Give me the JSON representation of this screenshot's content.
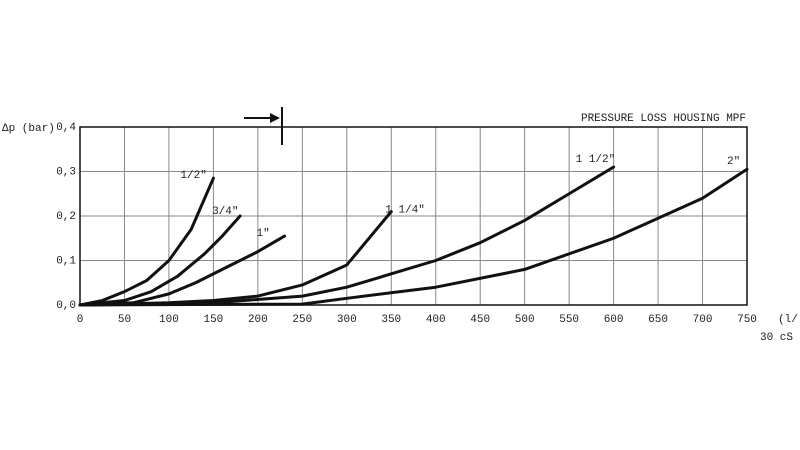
{
  "chart_data": {
    "type": "line",
    "title": "PRESSURE LOSS HOUSING MPF",
    "y_label": "Δp (bar)",
    "x_label": "(l/",
    "note": "30 cS",
    "color": "#111111",
    "grid": true,
    "xlim": [
      0,
      750
    ],
    "ylim": [
      0,
      0.4
    ],
    "xticks": [
      0,
      50,
      100,
      150,
      200,
      250,
      300,
      350,
      400,
      450,
      500,
      550,
      600,
      650,
      700,
      750
    ],
    "yticks": [
      {
        "value": 0,
        "label": "0,0"
      },
      {
        "value": 0.1,
        "label": "0,1"
      },
      {
        "value": 0.2,
        "label": "0,2"
      },
      {
        "value": 0.3,
        "label": "0,3"
      },
      {
        "value": 0.4,
        "label": "0,4"
      }
    ],
    "series": [
      {
        "name": "1/2\"",
        "color": "#111111",
        "x": [
          0,
          25,
          50,
          75,
          100,
          125,
          150
        ],
        "values": [
          0,
          0.01,
          0.03,
          0.055,
          0.1,
          0.17,
          0.285
        ]
      },
      {
        "name": "3/4\"",
        "color": "#111111",
        "x": [
          0,
          50,
          80,
          110,
          140,
          160,
          180
        ],
        "values": [
          0,
          0.01,
          0.03,
          0.065,
          0.115,
          0.155,
          0.2
        ]
      },
      {
        "name": "1\"",
        "color": "#111111",
        "x": [
          0,
          60,
          100,
          130,
          160,
          200,
          230
        ],
        "values": [
          0,
          0.005,
          0.025,
          0.05,
          0.08,
          0.12,
          0.155
        ]
      },
      {
        "name": "1 1/4\"",
        "color": "#111111",
        "x": [
          0,
          100,
          150,
          200,
          250,
          300,
          325,
          350
        ],
        "values": [
          0,
          0.005,
          0.01,
          0.02,
          0.045,
          0.09,
          0.15,
          0.21
        ]
      },
      {
        "name": "1 1/2\"",
        "color": "#111111",
        "x": [
          0,
          150,
          250,
          300,
          350,
          400,
          450,
          500,
          550,
          600
        ],
        "values": [
          0,
          0.005,
          0.02,
          0.04,
          0.07,
          0.1,
          0.14,
          0.19,
          0.25,
          0.31
        ]
      },
      {
        "name": "2\"",
        "color": "#111111",
        "x": [
          0,
          250,
          300,
          400,
          500,
          600,
          700,
          750
        ],
        "values": [
          0,
          0.002,
          0.015,
          0.04,
          0.08,
          0.15,
          0.24,
          0.305
        ]
      }
    ]
  }
}
